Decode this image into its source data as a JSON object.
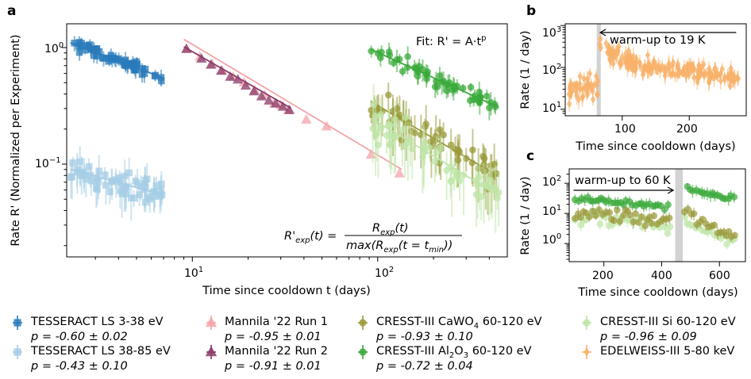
{
  "chart_data": [
    {
      "panel": "a",
      "type": "scatter",
      "xscale": "log",
      "yscale": "log",
      "xlabel": "Time since cooldown t (days)",
      "ylabel": "Rate R' (Normalized per Experiment)",
      "xlim": [
        2.1,
        500
      ],
      "ylim": [
        0.016,
        1.6
      ],
      "xticks": [
        "10^1",
        "10^2"
      ],
      "yticks": [
        "10^-1",
        "10^0"
      ],
      "fit_annotation": "Fit: R' = A · t^p",
      "formula_lhs": "R'exp(t) =",
      "formula_num": "Rexp(t)",
      "formula_den": "max(Rexp(t = tmin))",
      "series": [
        {
          "name": "TESSERACT LS 3-38 eV",
          "p_label": "p = -0.60 ± 0.02",
          "color": "#2a7bbb",
          "marker": "square",
          "A": 1.76,
          "p": -0.6,
          "fit_range": [
            2.2,
            7.0
          ],
          "t_range": [
            2.2,
            7.0
          ],
          "n": 60,
          "scatter": 0.09
        },
        {
          "name": "TESSERACT LS 38-85 eV",
          "p_label": "p = -0.43 ± 0.10",
          "color": "#a6cde6",
          "marker": "square",
          "A": 0.126,
          "p": -0.43,
          "fit_range": [
            2.2,
            7.0
          ],
          "t_range": [
            2.2,
            7.0
          ],
          "n": 60,
          "scatter": 0.2
        },
        {
          "name": "Mannila '22 Run 1",
          "p_label": "p = -0.95 ± 0.01",
          "color": "#f4a3a8",
          "marker": "triangle",
          "A": 9.5,
          "p": -0.95,
          "fit_range": [
            9,
            135
          ],
          "x": [
            9.3,
            11.0,
            12.8,
            14.5,
            16.6,
            19.0,
            21.7,
            24.6,
            27.6,
            30.0,
            33.0,
            41.2,
            53.0,
            92.0,
            131.0
          ],
          "y": [
            0.97,
            0.83,
            0.72,
            0.63,
            0.56,
            0.5,
            0.43,
            0.39,
            0.33,
            0.32,
            0.29,
            0.24,
            0.21,
            0.12,
            0.083
          ]
        },
        {
          "name": "Mannila '22 Run 2",
          "p_label": "p = -0.91 ± 0.01",
          "color": "#8a3a68",
          "marker": "triangle",
          "A": 7.5,
          "p": -0.91,
          "fit_range": [
            9,
            34
          ],
          "x": [
            9.3,
            11.2,
            12.6,
            14.3,
            16.0,
            17.6,
            19.4,
            21.5,
            23.6,
            25.9,
            28.2,
            30.8,
            33.4
          ],
          "y": [
            0.97,
            0.8,
            0.71,
            0.63,
            0.56,
            0.53,
            0.47,
            0.42,
            0.38,
            0.35,
            0.33,
            0.31,
            0.29
          ]
        },
        {
          "name": "CRESST-III CaWO4 60-120 eV",
          "p_label": "p = -0.93 ± 0.10",
          "color": "#9a9a3a",
          "marker": "circle",
          "A": 23.0,
          "p": -0.93,
          "fit_range": [
            92,
            450
          ],
          "t_range": [
            92,
            450
          ],
          "n": 55,
          "scatter": 0.28
        },
        {
          "name": "CRESST-III Al2O3 60-120 eV",
          "p_label": "p = -0.72 ± 0.04",
          "color": "#3aaa3a",
          "marker": "circle",
          "A": 25.0,
          "p": -0.72,
          "fit_range": [
            92,
            450
          ],
          "t_range": [
            92,
            450
          ],
          "n": 55,
          "scatter": 0.12
        },
        {
          "name": "CRESST-III Si 60-120 eV",
          "p_label": "p = -0.96 ± 0.09",
          "color": "#bfe5a8",
          "marker": "circle",
          "A": 19.0,
          "p": -0.96,
          "fit_range": [
            92,
            450
          ],
          "t_range": [
            92,
            450
          ],
          "n": 55,
          "scatter": 0.3
        },
        {
          "name": "EDELWEISS-III 5-80 keV",
          "p_label": "",
          "color": "#f8b26a",
          "marker": "diamond"
        }
      ]
    },
    {
      "panel": "b",
      "type": "scatter",
      "yscale": "log",
      "xlabel": "Time since cooldown (days)",
      "ylabel": "Rate (1 / day)",
      "xlim": [
        15,
        285
      ],
      "ylim": [
        7,
        1100
      ],
      "xticks": [
        100,
        200
      ],
      "yticks": [
        "10^1",
        "10^2",
        "10^3"
      ],
      "shaded_x": [
        62,
        68
      ],
      "annotation": "warm-up to 19 K",
      "arrow_x": [
        270,
        66
      ],
      "series": [
        {
          "name": "EDELWEISS-III 5-80 keV",
          "color": "#f8b26a",
          "marker": "diamond",
          "t_range": [
            20,
            275
          ],
          "n": 240
        }
      ]
    },
    {
      "panel": "c",
      "type": "scatter",
      "yscale": "log",
      "xlabel": "Time since cooldown (days)",
      "ylabel": "Rate (1 / day)",
      "xlim": [
        80,
        690
      ],
      "ylim": [
        0.25,
        300
      ],
      "xticks": [
        200,
        400,
        600
      ],
      "yticks": [
        "10^0",
        "10^1",
        "10^2"
      ],
      "shaded_x": [
        447,
        473
      ],
      "annotation": "warm-up to 60 K",
      "arrow_x": [
        95,
        443
      ],
      "series": [
        {
          "name": "CRESST-III Al2O3",
          "color": "#3aaa3a",
          "level_before": 30,
          "level_after_start": 95,
          "level_after_end": 30
        },
        {
          "name": "CRESST-III CaWO4",
          "color": "#9a9a3a",
          "level_before": 10,
          "level_after_start": 20,
          "level_after_end": 2
        },
        {
          "name": "CRESST-III Si",
          "color": "#bfe5a8",
          "level_before": 7,
          "level_after_start": 12,
          "level_after_end": 1
        }
      ]
    }
  ],
  "panels": {
    "a": {
      "letter": "a",
      "xlabel": "Time since cooldown t (days)",
      "ylabel": "Rate R' (Normalized per Experiment)",
      "fit_text": "Fit: R' = A·t",
      "fit_sup": "p",
      "f_lhs": "R'",
      "f_lhs_sub": "exp",
      "f_lhs_rest": "(t) =",
      "f_num": "R",
      "f_num_sub": "exp",
      "f_num_rest": "(t)",
      "f_den": "max(R",
      "f_den_sub": "exp",
      "f_den_rest": "(t = t",
      "f_den_sub2": "min",
      "f_den_end": "))",
      "xt1": "10",
      "xt1e": "1",
      "xt2": "10",
      "xt2e": "2",
      "yt1": "10",
      "yt1e": "−1",
      "yt2": "10",
      "yt2e": "0"
    },
    "b": {
      "letter": "b",
      "xlabel": "Time since cooldown (days)",
      "ylabel": "Rate (1 / day)",
      "annotation": "warm-up to 19 K",
      "xt1": "100",
      "xt2": "200",
      "yt1": "10",
      "yt1e": "1",
      "yt2": "10",
      "yt2e": "2",
      "yt3": "10",
      "yt3e": "3"
    },
    "c": {
      "letter": "c",
      "xlabel": "Time since cooldown (days)",
      "ylabel": "Rate (1 / day)",
      "annotation": "warm-up to 60 K",
      "xt1": "200",
      "xt2": "400",
      "xt3": "600",
      "yt1": "10",
      "yt1e": "0",
      "yt2": "10",
      "yt2e": "1",
      "yt3": "10",
      "yt3e": "2"
    }
  },
  "legend": [
    {
      "name": "TESSERACT LS 3-38 eV",
      "p": "p = -0.60 ± 0.02",
      "color": "#2a7bbb",
      "marker": "square"
    },
    {
      "name": "TESSERACT LS 38-85 eV",
      "p": "p = -0.43 ± 0.10",
      "color": "#a6cde6",
      "marker": "square"
    },
    {
      "name": "Mannila '22 Run 1",
      "p": "p = -0.95 ± 0.01",
      "color": "#f4a3a8",
      "marker": "triangle"
    },
    {
      "name": "Mannila '22 Run 2",
      "p": "p = -0.91 ± 0.01",
      "color": "#8a3a68",
      "marker": "triangle"
    },
    {
      "name": "CRESST-III CaWO",
      "sub": "4",
      "rest": " 60-120 eV",
      "p": "p = -0.93 ± 0.10",
      "color": "#9a9a3a",
      "marker": "circle"
    },
    {
      "name": "CRESST-III Al",
      "sub": "2",
      "mid": "O",
      "sub2": "3",
      "rest": " 60-120 eV",
      "p": "p = -0.72 ± 0.04",
      "color": "#3aaa3a",
      "marker": "circle"
    },
    {
      "name": "CRESST-III Si 60-120 eV",
      "p": "p = -0.96 ± 0.09",
      "color": "#bfe5a8",
      "marker": "circle"
    },
    {
      "name": "EDELWEISS-III 5-80 keV",
      "p": "",
      "color": "#f8b26a",
      "marker": "diamond"
    }
  ]
}
